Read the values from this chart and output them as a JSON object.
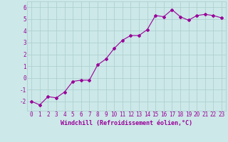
{
  "x": [
    0,
    1,
    2,
    3,
    4,
    5,
    6,
    7,
    8,
    9,
    10,
    11,
    12,
    13,
    14,
    15,
    16,
    17,
    18,
    19,
    20,
    21,
    22,
    23
  ],
  "y": [
    -2.0,
    -2.3,
    -1.6,
    -1.7,
    -1.2,
    -0.3,
    -0.2,
    -0.2,
    1.1,
    1.6,
    2.5,
    3.2,
    3.6,
    3.6,
    4.1,
    5.3,
    5.2,
    5.8,
    5.2,
    4.9,
    5.3,
    5.4,
    5.3,
    5.1
  ],
  "line_color": "#990099",
  "marker": "D",
  "markersize": 2,
  "linewidth": 0.8,
  "bg_color": "#cce8e8",
  "plot_bg_color": "#cce8e8",
  "grid_color": "#aacccc",
  "xlabel": "Windchill (Refroidissement éolien,°C)",
  "xlabel_fontsize": 6,
  "xlabel_color": "#990099",
  "ytick_labels": [
    "-2",
    "-1",
    "0",
    "1",
    "2",
    "3",
    "4",
    "5",
    "6"
  ],
  "yticks": [
    -2,
    -1,
    0,
    1,
    2,
    3,
    4,
    5,
    6
  ],
  "ylim": [
    -2.8,
    6.5
  ],
  "xlim": [
    -0.5,
    23.5
  ],
  "tick_color": "#990099",
  "tick_fontsize": 5.5
}
